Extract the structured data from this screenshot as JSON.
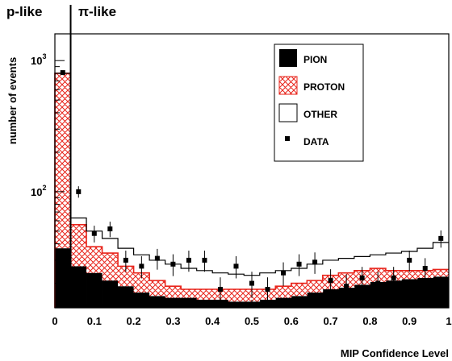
{
  "chart_data": {
    "type": "bar",
    "stacked": true,
    "xlabel": "MIP Confidence Level",
    "ylabel": "number of events",
    "xlim": [
      0,
      1
    ],
    "ylim": [
      13,
      1600
    ],
    "yscale": "log",
    "x_ticks": [
      "0",
      "0.1",
      "0.2",
      "0.3",
      "0.4",
      "0.5",
      "0.6",
      "0.7",
      "0.8",
      "0.9",
      "1"
    ],
    "y_ticks": [
      {
        "value": 100,
        "base": "10",
        "exp": "2"
      },
      {
        "value": 1000,
        "base": "10",
        "exp": "3"
      }
    ],
    "bin_edges": [
      0,
      0.04,
      0.08,
      0.12,
      0.16,
      0.2,
      0.24,
      0.28,
      0.32,
      0.36,
      0.4,
      0.44,
      0.48,
      0.52,
      0.56,
      0.6,
      0.64,
      0.68,
      0.72,
      0.76,
      0.8,
      0.84,
      0.88,
      0.92,
      0.96,
      1.0
    ],
    "series": [
      {
        "name": "PION",
        "style": "solid",
        "values": [
          37,
          27,
          24,
          21,
          19,
          17,
          16,
          15.5,
          15.5,
          15,
          15,
          14.5,
          14.5,
          15,
          15.5,
          16,
          17,
          18,
          18.5,
          19.5,
          20.5,
          21,
          21.5,
          22,
          22.5
        ]
      },
      {
        "name": "PROTON",
        "style": "hatched",
        "values_cumulative": [
          800,
          56,
          38,
          34,
          27,
          24,
          21,
          19,
          18,
          18,
          18,
          18,
          18,
          18,
          19,
          20,
          21,
          23,
          24,
          25,
          26,
          25,
          25,
          25,
          25.5
        ]
      },
      {
        "name": "OTHER",
        "style": "outline",
        "values_cumulative": [
          800,
          63,
          50,
          44,
          37,
          33,
          30,
          28,
          26,
          25,
          24,
          23.5,
          23,
          24,
          25,
          26,
          28,
          30,
          31,
          32,
          33,
          34,
          35,
          37,
          41
        ]
      },
      {
        "name": "DATA",
        "style": "points",
        "points": [
          {
            "x": 0.02,
            "y": 810,
            "err": 30
          },
          {
            "x": 0.06,
            "y": 100,
            "err": 10
          },
          {
            "x": 0.1,
            "y": 48,
            "err": 7
          },
          {
            "x": 0.14,
            "y": 52,
            "err": 7
          },
          {
            "x": 0.18,
            "y": 30,
            "err": 5.5
          },
          {
            "x": 0.22,
            "y": 27,
            "err": 5.2
          },
          {
            "x": 0.26,
            "y": 31,
            "err": 5.6
          },
          {
            "x": 0.3,
            "y": 28,
            "err": 5.3
          },
          {
            "x": 0.34,
            "y": 30,
            "err": 5.5
          },
          {
            "x": 0.38,
            "y": 30,
            "err": 5.5
          },
          {
            "x": 0.42,
            "y": 18,
            "err": 4.2
          },
          {
            "x": 0.46,
            "y": 27,
            "err": 5.2
          },
          {
            "x": 0.5,
            "y": 20,
            "err": 4.5
          },
          {
            "x": 0.54,
            "y": 18,
            "err": 4.2
          },
          {
            "x": 0.58,
            "y": 24,
            "err": 4.9
          },
          {
            "x": 0.62,
            "y": 28,
            "err": 5.3
          },
          {
            "x": 0.66,
            "y": 29,
            "err": 5.4
          },
          {
            "x": 0.7,
            "y": 21,
            "err": 4.6
          },
          {
            "x": 0.74,
            "y": 19,
            "err": 4.4
          },
          {
            "x": 0.78,
            "y": 22,
            "err": 4.7
          },
          {
            "x": 0.82,
            "y": 20,
            "err": 4.5
          },
          {
            "x": 0.86,
            "y": 22,
            "err": 4.7
          },
          {
            "x": 0.9,
            "y": 30,
            "err": 5.5
          },
          {
            "x": 0.94,
            "y": 26,
            "err": 5.1
          },
          {
            "x": 0.98,
            "y": 44,
            "err": 6.6
          }
        ]
      }
    ],
    "cut_x": 0.04,
    "region_labels": {
      "left": "p-like",
      "right": "π-like"
    },
    "legend": {
      "position": "top-right"
    },
    "colors": {
      "pion": "#000000",
      "proton": "#e8241b",
      "other": "#000000",
      "data": "#000000"
    },
    "grid": false
  }
}
